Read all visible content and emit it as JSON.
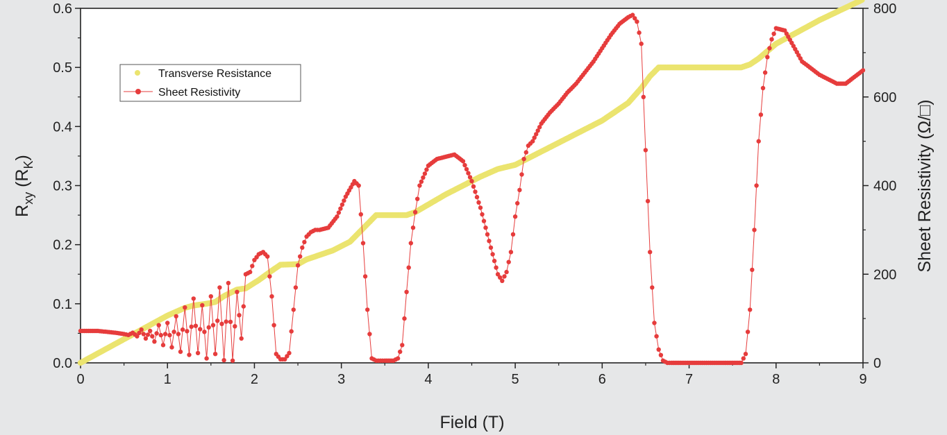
{
  "chart_data": {
    "type": "scatter",
    "xlabel": "Field (T)",
    "ylabel_main": "R",
    "ylabel_sub": "xy",
    "ylabel_unit_pre": " (R",
    "ylabel_unit_sub": "K",
    "ylabel_unit_post": ")",
    "y2label": "Sheet Resistivity (Ω/□)",
    "xlim": [
      0,
      9
    ],
    "ylim": [
      0,
      0.6
    ],
    "y2lim": [
      0,
      800
    ],
    "xticks": [
      "0",
      "1",
      "2",
      "3",
      "4",
      "5",
      "6",
      "7",
      "8",
      "9"
    ],
    "yticks": [
      "0.0",
      "0.1",
      "0.2",
      "0.3",
      "0.4",
      "0.5",
      "0.6"
    ],
    "y2ticks": [
      "0",
      "200",
      "400",
      "600",
      "800"
    ],
    "legend_position": "top-left",
    "series": [
      {
        "name": "Transverse Resistance",
        "axis": "left",
        "color": "#ebe46f",
        "style": "thick-markers",
        "x": [
          0,
          0.5,
          1.0,
          1.2,
          1.3,
          1.45,
          1.55,
          1.65,
          1.8,
          1.9,
          2.05,
          2.2,
          2.3,
          2.5,
          2.6,
          2.9,
          3.1,
          3.3,
          3.4,
          3.75,
          3.85,
          4.2,
          4.6,
          4.8,
          5.0,
          5.2,
          5.6,
          6.0,
          6.3,
          6.45,
          6.55,
          6.65,
          6.8,
          7.0,
          7.6,
          7.7,
          7.8,
          8.0,
          8.5,
          9.0
        ],
        "y": [
          0.0,
          0.04,
          0.08,
          0.093,
          0.097,
          0.1,
          0.103,
          0.113,
          0.124,
          0.126,
          0.14,
          0.156,
          0.166,
          0.167,
          0.175,
          0.19,
          0.205,
          0.235,
          0.25,
          0.25,
          0.255,
          0.285,
          0.315,
          0.328,
          0.335,
          0.35,
          0.38,
          0.41,
          0.44,
          0.465,
          0.485,
          0.5,
          0.5,
          0.5,
          0.5,
          0.505,
          0.515,
          0.54,
          0.58,
          0.615
        ]
      },
      {
        "name": "Sheet Resistivity",
        "axis": "right",
        "color": "#e63c3c",
        "style": "line-markers",
        "x": [
          0,
          0.2,
          0.4,
          0.5,
          0.55,
          0.6,
          0.65,
          0.7,
          0.75,
          0.8,
          0.85,
          0.9,
          0.95,
          1.0,
          1.05,
          1.1,
          1.15,
          1.2,
          1.25,
          1.3,
          1.35,
          1.4,
          1.45,
          1.5,
          1.55,
          1.6,
          1.65,
          1.7,
          1.75,
          1.8,
          1.85,
          1.9,
          1.95,
          2.0,
          2.05,
          2.1,
          2.15,
          2.2,
          2.25,
          2.3,
          2.35,
          2.4,
          2.45,
          2.5,
          2.55,
          2.6,
          2.65,
          2.7,
          2.75,
          2.85,
          2.95,
          3.05,
          3.15,
          3.2,
          3.25,
          3.3,
          3.35,
          3.4,
          3.45,
          3.5,
          3.6,
          3.65,
          3.7,
          3.75,
          3.8,
          3.85,
          3.9,
          4.0,
          4.1,
          4.2,
          4.3,
          4.4,
          4.5,
          4.6,
          4.7,
          4.8,
          4.85,
          4.9,
          4.95,
          5.0,
          5.05,
          5.1,
          5.15,
          5.2,
          5.3,
          5.4,
          5.5,
          5.6,
          5.7,
          5.8,
          5.9,
          6.0,
          6.1,
          6.2,
          6.3,
          6.35,
          6.4,
          6.45,
          6.5,
          6.55,
          6.6,
          6.65,
          6.7,
          6.75,
          6.8,
          6.9,
          7.0,
          7.2,
          7.4,
          7.5,
          7.6,
          7.65,
          7.7,
          7.75,
          7.8,
          7.85,
          7.9,
          7.95,
          8.0,
          8.1,
          8.2,
          8.3,
          8.5,
          8.7,
          8.8,
          8.9,
          9.0
        ],
        "y": [
          72,
          72,
          68,
          65,
          63,
          68,
          60,
          75,
          55,
          72,
          48,
          85,
          40,
          90,
          35,
          105,
          25,
          125,
          18,
          145,
          22,
          130,
          10,
          150,
          20,
          170,
          6,
          180,
          5,
          160,
          55,
          200,
          205,
          232,
          245,
          250,
          240,
          150,
          20,
          8,
          8,
          22,
          120,
          220,
          260,
          285,
          295,
          300,
          300,
          305,
          330,
          375,
          410,
          400,
          270,
          120,
          10,
          5,
          5,
          5,
          5,
          10,
          40,
          160,
          270,
          340,
          400,
          445,
          460,
          465,
          470,
          455,
          410,
          350,
          275,
          200,
          185,
          205,
          250,
          330,
          390,
          460,
          490,
          500,
          540,
          565,
          585,
          610,
          630,
          655,
          680,
          710,
          740,
          765,
          780,
          785,
          770,
          720,
          480,
          250,
          90,
          30,
          5,
          0,
          0,
          0,
          0,
          0,
          0,
          0,
          0,
          20,
          120,
          300,
          500,
          620,
          690,
          730,
          755,
          750,
          715,
          680,
          650,
          630,
          630,
          645,
          660
        ]
      }
    ]
  }
}
